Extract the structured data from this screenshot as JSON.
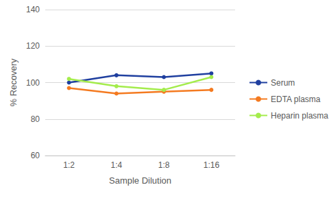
{
  "chart_data": {
    "type": "line",
    "x_label": "Sample Dilution",
    "y_label": "% Recovery",
    "categories": [
      "1:2",
      "1:4",
      "1:8",
      "1:16"
    ],
    "series": [
      {
        "name": "Serum",
        "color": "#1f3f9f",
        "values": [
          100,
          104,
          103,
          105
        ]
      },
      {
        "name": "EDTA plasma",
        "color": "#f47a20",
        "values": [
          97,
          94,
          95,
          96
        ]
      },
      {
        "name": "Heparin plasma",
        "color": "#a4ec4c",
        "values": [
          102,
          98,
          96,
          103
        ]
      }
    ],
    "ylim": [
      60,
      140
    ],
    "yticks": [
      60,
      80,
      100,
      120,
      140
    ],
    "grid": true,
    "legend": "right",
    "marker": "circle"
  }
}
